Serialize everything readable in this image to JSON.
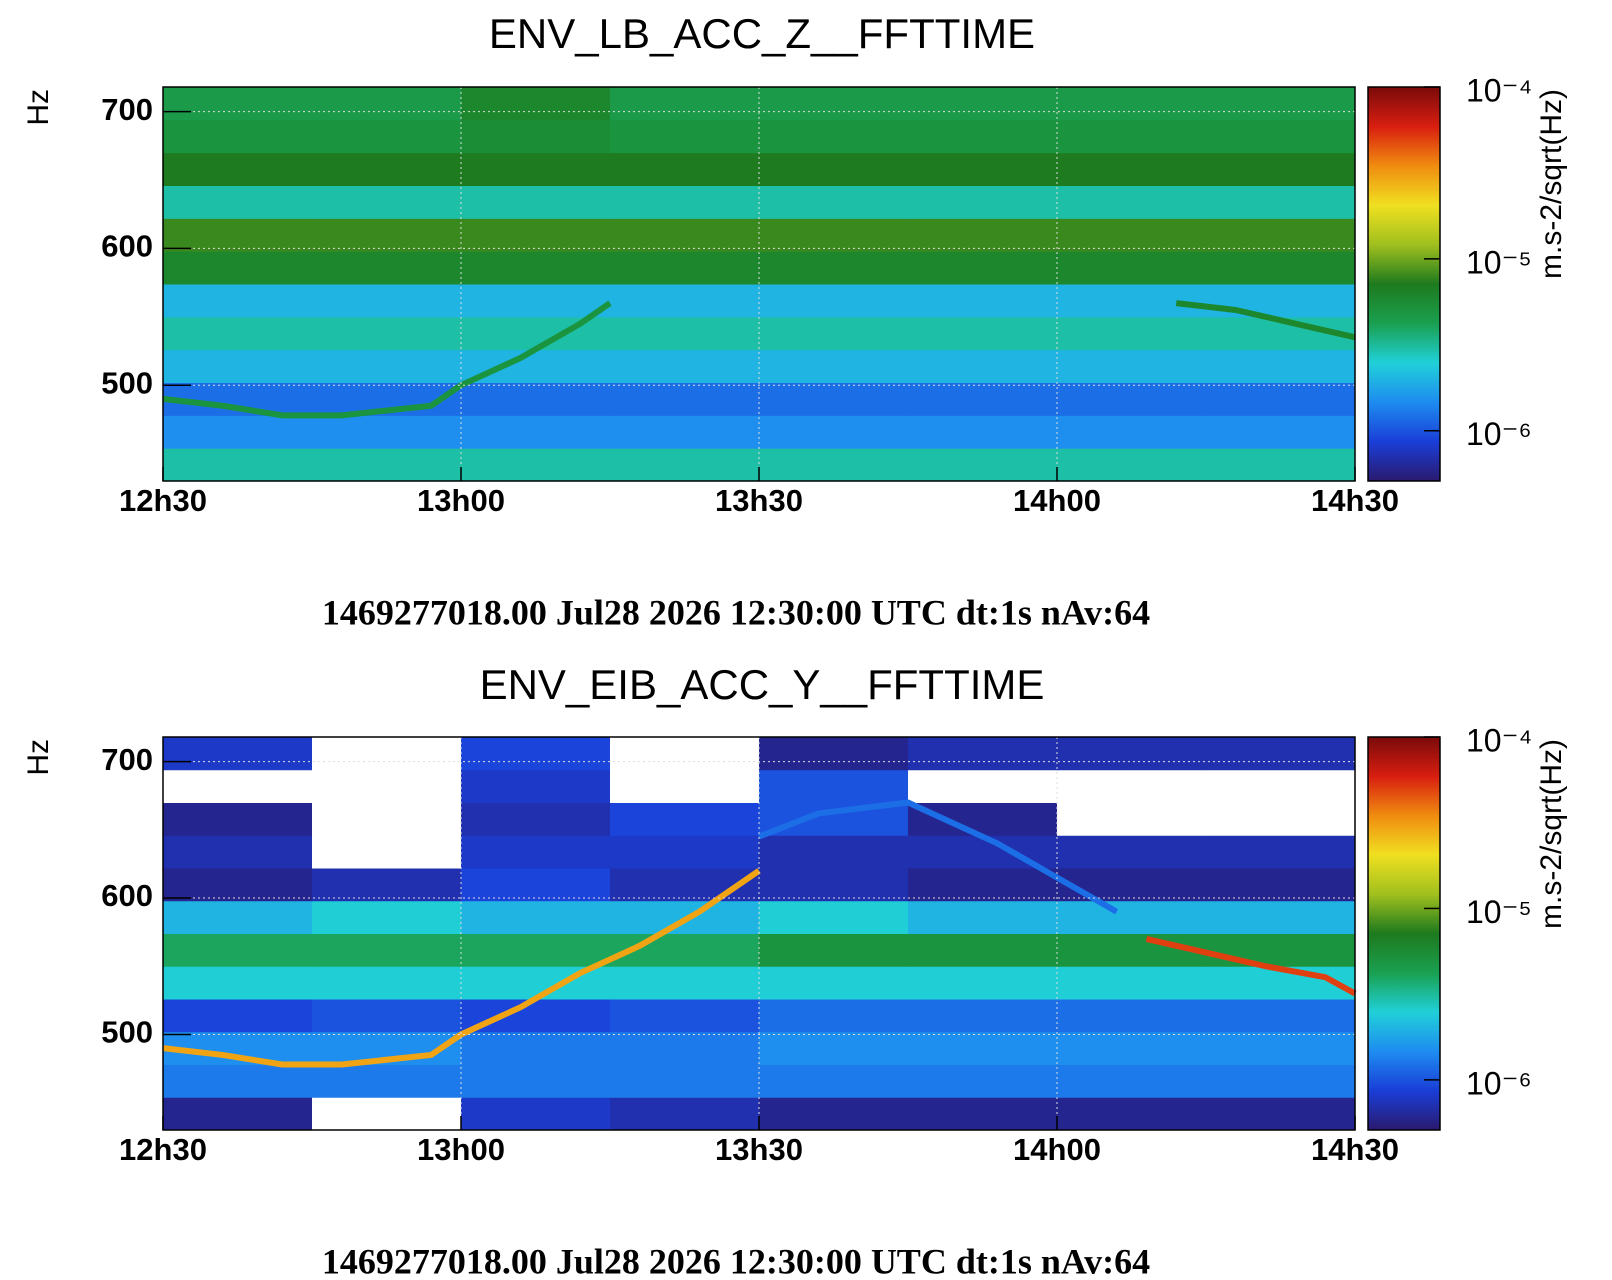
{
  "chart_data": [
    {
      "type": "spectrogram",
      "title": "ENV_LB_ACC_Z__FFTTIME",
      "footer": "1469277018.00 Jul28 2026 12:30:00 UTC dt:1s nAv:64",
      "ylabel": "Hz",
      "zlabel": "m.s-2/sqrt(Hz)",
      "xlim": [
        12.5,
        14.5
      ],
      "xticks": [
        {
          "value": 12.5,
          "label": "12h30"
        },
        {
          "value": 13,
          "label": "13h00"
        },
        {
          "value": 13.5,
          "label": "13h30"
        },
        {
          "value": 14,
          "label": "14h00"
        },
        {
          "value": 14.5,
          "label": "14h30"
        }
      ],
      "ylim": [
        430,
        718
      ],
      "yticks": [
        500,
        600,
        700
      ],
      "zlim": [
        5.1e-07,
        0.0001
      ],
      "zscale": "log",
      "zticks": [
        {
          "value": 0.0001,
          "label": "10⁻⁴"
        },
        {
          "value": 1e-05,
          "label": "10⁻⁵"
        },
        {
          "value": 1e-06,
          "label": "10⁻⁶"
        }
      ],
      "colormap": [
        "#2a1a6e",
        "#1a3ed8",
        "#1e8cf0",
        "#20d0d8",
        "#1aa050",
        "#1e7a1e",
        "#a0c01e",
        "#f0e020",
        "#f08c10",
        "#d81e10",
        "#7a0a0a"
      ],
      "grid": true,
      "xbins": [
        12.5,
        12.75,
        13,
        13.25,
        13.5,
        13.75,
        14,
        14.25,
        14.5
      ],
      "ybins": [
        430,
        454,
        478,
        502,
        526,
        550,
        574,
        598,
        622,
        646,
        670,
        694,
        718
      ],
      "z": [
        [
          3e-06,
          3e-06,
          3e-06,
          3e-06,
          3e-06,
          3e-06,
          3e-06,
          3e-06
        ],
        [
          1.5e-06,
          1.5e-06,
          1.5e-06,
          1.5e-06,
          1.5e-06,
          1.5e-06,
          1.5e-06,
          1.5e-06
        ],
        [
          1.2e-06,
          1.2e-06,
          1.2e-06,
          1.2e-06,
          1.2e-06,
          1.2e-06,
          1.2e-06,
          1.2e-06
        ],
        [
          2e-06,
          2e-06,
          2e-06,
          2e-06,
          2e-06,
          2e-06,
          2e-06,
          2e-06
        ],
        [
          3e-06,
          3e-06,
          3e-06,
          3e-06,
          3e-06,
          3e-06,
          3e-06,
          3e-06
        ],
        [
          2e-06,
          2e-06,
          2e-06,
          2e-06,
          2e-06,
          2e-06,
          2e-06,
          2e-06
        ],
        [
          6e-06,
          6e-06,
          6e-06,
          6e-06,
          6e-06,
          6e-06,
          6e-06,
          6e-06
        ],
        [
          8e-06,
          8e-06,
          8e-06,
          8e-06,
          8e-06,
          8e-06,
          8e-06,
          8e-06
        ],
        [
          3e-06,
          3e-06,
          3e-06,
          3e-06,
          3e-06,
          3e-06,
          3e-06,
          3e-06
        ],
        [
          7e-06,
          7e-06,
          7e-06,
          7e-06,
          7e-06,
          7e-06,
          7e-06,
          7e-06
        ],
        [
          5e-06,
          5e-06,
          5.5e-06,
          5e-06,
          5e-06,
          5e-06,
          5e-06,
          5e-06
        ],
        [
          4.5e-06,
          4.5e-06,
          6e-06,
          4.5e-06,
          4.5e-06,
          4.5e-06,
          4.5e-06,
          4.5e-06
        ]
      ],
      "series": [
        {
          "level": 5e-06,
          "x": [
            12.5,
            12.6,
            12.7,
            12.8,
            12.95,
            13.0,
            13.1,
            13.2,
            13.25
          ],
          "values": [
            490,
            485,
            478,
            478,
            485,
            500,
            520,
            545,
            560
          ]
        },
        {
          "level": 6e-06,
          "x": [
            14.2,
            14.3,
            14.4,
            14.5
          ],
          "values": [
            560,
            555,
            545,
            535
          ]
        }
      ]
    },
    {
      "type": "spectrogram",
      "title": "ENV_EIB_ACC_Y__FFTTIME",
      "footer": "1469277018.00 Jul28 2026 12:30:00 UTC dt:1s nAv:64",
      "ylabel": "Hz",
      "zlabel": "m.s-2/sqrt(Hz)",
      "xlim": [
        12.5,
        14.5
      ],
      "xticks": [
        {
          "value": 12.5,
          "label": "12h30"
        },
        {
          "value": 13,
          "label": "13h00"
        },
        {
          "value": 13.5,
          "label": "13h30"
        },
        {
          "value": 14,
          "label": "14h00"
        },
        {
          "value": 14.5,
          "label": "14h30"
        }
      ],
      "ylim": [
        430,
        718
      ],
      "yticks": [
        500,
        600,
        700
      ],
      "zlim": [
        5.1e-07,
        0.0001
      ],
      "zscale": "log",
      "zticks": [
        {
          "value": 0.0001,
          "label": "10⁻⁴"
        },
        {
          "value": 1e-05,
          "label": "10⁻⁵"
        },
        {
          "value": 1e-06,
          "label": "10⁻⁶"
        }
      ],
      "colormap": [
        "#2a1a6e",
        "#1a3ed8",
        "#1e8cf0",
        "#20d0d8",
        "#1aa050",
        "#1e7a1e",
        "#a0c01e",
        "#f0e020",
        "#f08c10",
        "#d81e10",
        "#7a0a0a"
      ],
      "grid": true,
      "xbins": [
        12.5,
        12.75,
        13,
        13.25,
        13.5,
        13.75,
        14,
        14.25,
        14.5
      ],
      "ybins": [
        430,
        454,
        478,
        502,
        526,
        550,
        574,
        598,
        622,
        646,
        670,
        694,
        718
      ],
      "z": [
        [
          6e-07,
          4e-07,
          8e-07,
          7e-07,
          6e-07,
          6e-07,
          6e-07,
          6e-07
        ],
        [
          1.3e-06,
          1.3e-06,
          1.3e-06,
          1.3e-06,
          1.3e-06,
          1.3e-06,
          1.3e-06,
          1.3e-06
        ],
        [
          1.5e-06,
          1.5e-06,
          1.3e-06,
          1.3e-06,
          1.5e-06,
          1.5e-06,
          1.5e-06,
          1.5e-06
        ],
        [
          9e-07,
          1e-06,
          9e-07,
          1e-06,
          1.2e-06,
          1.2e-06,
          1.2e-06,
          1.2e-06
        ],
        [
          2.5e-06,
          2.5e-06,
          2.5e-06,
          2.5e-06,
          2.5e-06,
          2.5e-06,
          2.5e-06,
          2.5e-06
        ],
        [
          4e-06,
          4e-06,
          4e-06,
          4e-06,
          5e-06,
          5e-06,
          5e-06,
          5e-06
        ],
        [
          2e-06,
          2.5e-06,
          2e-06,
          2e-06,
          2.5e-06,
          2e-06,
          2e-06,
          2e-06
        ],
        [
          6e-07,
          7e-07,
          9e-07,
          7e-07,
          7e-07,
          6e-07,
          6e-07,
          6e-07
        ],
        [
          7e-07,
          3e-07,
          8e-07,
          8e-07,
          7e-07,
          7e-07,
          7e-07,
          7e-07
        ],
        [
          6e-07,
          3e-07,
          7e-07,
          9e-07,
          1e-06,
          6e-07,
          5e-07,
          4e-07
        ],
        [
          3e-07,
          3e-07,
          8e-07,
          3e-07,
          1e-06,
          3e-07,
          4e-07,
          3e-07
        ],
        [
          8e-07,
          3e-07,
          9e-07,
          4e-07,
          6e-07,
          7e-07,
          7e-07,
          7e-07
        ]
      ],
      "series": [
        {
          "level": 3e-05,
          "x": [
            12.5,
            12.6,
            12.7,
            12.8,
            12.95,
            13.0,
            13.1,
            13.2,
            13.3,
            13.4,
            13.5
          ],
          "values": [
            490,
            485,
            478,
            478,
            485,
            500,
            520,
            545,
            565,
            590,
            620
          ]
        },
        {
          "level": 1.2e-06,
          "x": [
            13.5,
            13.6,
            13.75,
            13.9,
            14.0,
            14.1
          ],
          "values": [
            645,
            662,
            670,
            640,
            615,
            590
          ]
        },
        {
          "level": 5e-05,
          "x": [
            14.15,
            14.25,
            14.35,
            14.45,
            14.5
          ],
          "values": [
            570,
            560,
            550,
            542,
            530
          ]
        }
      ]
    }
  ]
}
